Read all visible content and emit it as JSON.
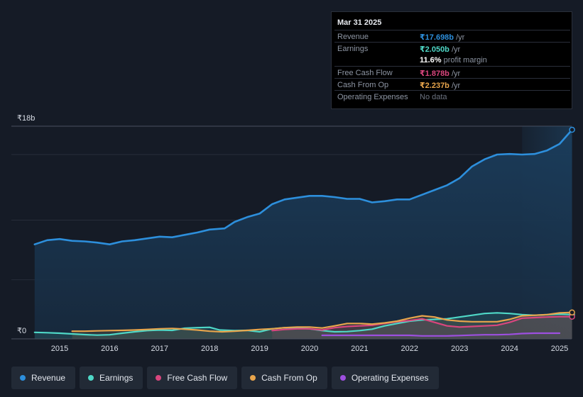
{
  "chart_data": {
    "type": "line",
    "x_label_years": [
      "2015",
      "2016",
      "2017",
      "2018",
      "2019",
      "2020",
      "2021",
      "2022",
      "2023",
      "2024",
      "2025"
    ],
    "y_ticks": [
      {
        "value": 18,
        "label": "₹18b"
      },
      {
        "value": 0,
        "label": "₹0"
      }
    ],
    "ylim": [
      0,
      18
    ],
    "xlim": [
      2014.45,
      2025.25
    ],
    "forecast_start": 2024.25,
    "series": [
      {
        "name": "Revenue",
        "color": "#2d8fdc",
        "fill": true,
        "points": [
          [
            2014.5,
            8.0
          ],
          [
            2014.75,
            8.35
          ],
          [
            2015.0,
            8.45
          ],
          [
            2015.25,
            8.3
          ],
          [
            2015.5,
            8.25
          ],
          [
            2015.75,
            8.15
          ],
          [
            2016.0,
            8.0
          ],
          [
            2016.25,
            8.25
          ],
          [
            2016.5,
            8.35
          ],
          [
            2016.75,
            8.5
          ],
          [
            2017.0,
            8.65
          ],
          [
            2017.25,
            8.6
          ],
          [
            2017.5,
            8.8
          ],
          [
            2017.75,
            9.0
          ],
          [
            2018.0,
            9.25
          ],
          [
            2018.3,
            9.35
          ],
          [
            2018.5,
            9.9
          ],
          [
            2018.75,
            10.3
          ],
          [
            2019.0,
            10.6
          ],
          [
            2019.25,
            11.4
          ],
          [
            2019.5,
            11.8
          ],
          [
            2019.75,
            11.95
          ],
          [
            2020.0,
            12.1
          ],
          [
            2020.25,
            12.1
          ],
          [
            2020.5,
            12.0
          ],
          [
            2020.75,
            11.85
          ],
          [
            2021.0,
            11.85
          ],
          [
            2021.25,
            11.55
          ],
          [
            2021.5,
            11.65
          ],
          [
            2021.75,
            11.8
          ],
          [
            2022.0,
            11.8
          ],
          [
            2022.25,
            12.2
          ],
          [
            2022.5,
            12.6
          ],
          [
            2022.75,
            13.0
          ],
          [
            2023.0,
            13.6
          ],
          [
            2023.25,
            14.6
          ],
          [
            2023.5,
            15.2
          ],
          [
            2023.75,
            15.6
          ],
          [
            2024.0,
            15.65
          ],
          [
            2024.25,
            15.6
          ],
          [
            2024.5,
            15.65
          ],
          [
            2024.75,
            15.95
          ],
          [
            2025.0,
            16.5
          ],
          [
            2025.25,
            17.698
          ]
        ]
      },
      {
        "name": "Earnings",
        "color": "#4fd8c7",
        "fill": true,
        "points": [
          [
            2014.5,
            0.55
          ],
          [
            2014.75,
            0.52
          ],
          [
            2015.0,
            0.48
          ],
          [
            2015.25,
            0.42
          ],
          [
            2015.5,
            0.36
          ],
          [
            2015.75,
            0.32
          ],
          [
            2016.0,
            0.35
          ],
          [
            2016.25,
            0.48
          ],
          [
            2016.5,
            0.6
          ],
          [
            2016.75,
            0.7
          ],
          [
            2017.0,
            0.75
          ],
          [
            2017.25,
            0.72
          ],
          [
            2017.5,
            0.9
          ],
          [
            2017.75,
            0.95
          ],
          [
            2018.0,
            0.98
          ],
          [
            2018.2,
            0.75
          ],
          [
            2018.5,
            0.7
          ],
          [
            2018.75,
            0.72
          ],
          [
            2019.0,
            0.6
          ],
          [
            2019.25,
            0.85
          ],
          [
            2019.5,
            0.95
          ],
          [
            2019.75,
            0.92
          ],
          [
            2020.0,
            0.85
          ],
          [
            2020.25,
            0.7
          ],
          [
            2020.5,
            0.6
          ],
          [
            2020.75,
            0.62
          ],
          [
            2021.0,
            0.7
          ],
          [
            2021.25,
            0.82
          ],
          [
            2021.5,
            1.1
          ],
          [
            2021.75,
            1.3
          ],
          [
            2022.0,
            1.5
          ],
          [
            2022.25,
            1.6
          ],
          [
            2022.5,
            1.65
          ],
          [
            2022.75,
            1.7
          ],
          [
            2023.0,
            1.85
          ],
          [
            2023.25,
            2.0
          ],
          [
            2023.5,
            2.15
          ],
          [
            2023.75,
            2.2
          ],
          [
            2024.0,
            2.15
          ],
          [
            2024.25,
            2.05
          ],
          [
            2024.5,
            2.0
          ],
          [
            2024.75,
            2.05
          ],
          [
            2025.0,
            2.1
          ],
          [
            2025.25,
            2.05
          ]
        ]
      },
      {
        "name": "Free Cash Flow",
        "color": "#d9467e",
        "fill": true,
        "points": [
          [
            2019.25,
            0.7
          ],
          [
            2019.5,
            0.8
          ],
          [
            2019.75,
            0.85
          ],
          [
            2020.0,
            0.85
          ],
          [
            2020.25,
            0.75
          ],
          [
            2020.5,
            0.95
          ],
          [
            2020.75,
            1.05
          ],
          [
            2021.0,
            1.1
          ],
          [
            2021.25,
            1.15
          ],
          [
            2021.5,
            1.3
          ],
          [
            2021.75,
            1.45
          ],
          [
            2022.0,
            1.55
          ],
          [
            2022.25,
            1.7
          ],
          [
            2022.5,
            1.4
          ],
          [
            2022.75,
            1.1
          ],
          [
            2023.0,
            1.0
          ],
          [
            2023.25,
            1.05
          ],
          [
            2023.5,
            1.1
          ],
          [
            2023.75,
            1.15
          ],
          [
            2024.0,
            1.4
          ],
          [
            2024.25,
            1.75
          ],
          [
            2024.5,
            1.8
          ],
          [
            2024.75,
            1.85
          ],
          [
            2025.0,
            1.88
          ],
          [
            2025.25,
            1.878
          ]
        ]
      },
      {
        "name": "Cash From Op",
        "color": "#e8a54c",
        "fill": true,
        "points": [
          [
            2015.25,
            0.65
          ],
          [
            2015.5,
            0.65
          ],
          [
            2015.75,
            0.68
          ],
          [
            2016.0,
            0.7
          ],
          [
            2016.25,
            0.72
          ],
          [
            2016.5,
            0.75
          ],
          [
            2016.75,
            0.8
          ],
          [
            2017.0,
            0.85
          ],
          [
            2017.25,
            0.88
          ],
          [
            2017.5,
            0.82
          ],
          [
            2017.75,
            0.75
          ],
          [
            2018.0,
            0.65
          ],
          [
            2018.25,
            0.6
          ],
          [
            2018.5,
            0.65
          ],
          [
            2018.75,
            0.72
          ],
          [
            2019.0,
            0.8
          ],
          [
            2019.25,
            0.85
          ],
          [
            2019.5,
            0.95
          ],
          [
            2019.75,
            1.0
          ],
          [
            2020.0,
            1.0
          ],
          [
            2020.25,
            0.92
          ],
          [
            2020.5,
            1.1
          ],
          [
            2020.75,
            1.3
          ],
          [
            2021.0,
            1.3
          ],
          [
            2021.25,
            1.25
          ],
          [
            2021.5,
            1.35
          ],
          [
            2021.75,
            1.5
          ],
          [
            2022.0,
            1.75
          ],
          [
            2022.25,
            1.95
          ],
          [
            2022.5,
            1.85
          ],
          [
            2022.75,
            1.6
          ],
          [
            2023.0,
            1.5
          ],
          [
            2023.25,
            1.45
          ],
          [
            2023.5,
            1.45
          ],
          [
            2023.75,
            1.45
          ],
          [
            2024.0,
            1.65
          ],
          [
            2024.25,
            1.95
          ],
          [
            2024.5,
            2.0
          ],
          [
            2024.75,
            2.05
          ],
          [
            2025.0,
            2.2
          ],
          [
            2025.25,
            2.237
          ]
        ]
      },
      {
        "name": "Operating Expenses",
        "color": "#9d4fe0",
        "fill": false,
        "points": [
          [
            2020.25,
            0.3
          ],
          [
            2020.5,
            0.3
          ],
          [
            2020.75,
            0.3
          ],
          [
            2021.0,
            0.3
          ],
          [
            2021.25,
            0.3
          ],
          [
            2021.5,
            0.3
          ],
          [
            2021.75,
            0.3
          ],
          [
            2022.0,
            0.3
          ],
          [
            2022.25,
            0.25
          ],
          [
            2022.5,
            0.25
          ],
          [
            2022.75,
            0.25
          ],
          [
            2023.0,
            0.28
          ],
          [
            2023.25,
            0.32
          ],
          [
            2023.5,
            0.35
          ],
          [
            2023.75,
            0.35
          ],
          [
            2024.0,
            0.38
          ],
          [
            2024.25,
            0.45
          ],
          [
            2024.5,
            0.48
          ],
          [
            2024.75,
            0.48
          ],
          [
            2025.0,
            0.48
          ]
        ]
      }
    ]
  },
  "tooltip": {
    "date": "Mar 31 2025",
    "rows": [
      {
        "label": "Revenue",
        "value": "₹17.698b",
        "unit": " /yr",
        "color": "#2d8fdc"
      },
      {
        "label": "Earnings",
        "value": "₹2.050b",
        "unit": " /yr",
        "color": "#4fd8c7"
      },
      {
        "label": "",
        "value": "11.6%",
        "unit": " profit margin",
        "color": "#ffffff"
      },
      {
        "label": "Free Cash Flow",
        "value": "₹1.878b",
        "unit": " /yr",
        "color": "#d9467e"
      },
      {
        "label": "Cash From Op",
        "value": "₹2.237b",
        "unit": " /yr",
        "color": "#e8a54c"
      },
      {
        "label": "Operating Expenses",
        "value": "No data",
        "unit": "",
        "color": "#6c7380"
      }
    ]
  },
  "legend": [
    {
      "label": "Revenue",
      "color": "#2d8fdc"
    },
    {
      "label": "Earnings",
      "color": "#4fd8c7"
    },
    {
      "label": "Free Cash Flow",
      "color": "#d9467e"
    },
    {
      "label": "Cash From Op",
      "color": "#e8a54c"
    },
    {
      "label": "Operating Expenses",
      "color": "#9d4fe0"
    }
  ]
}
